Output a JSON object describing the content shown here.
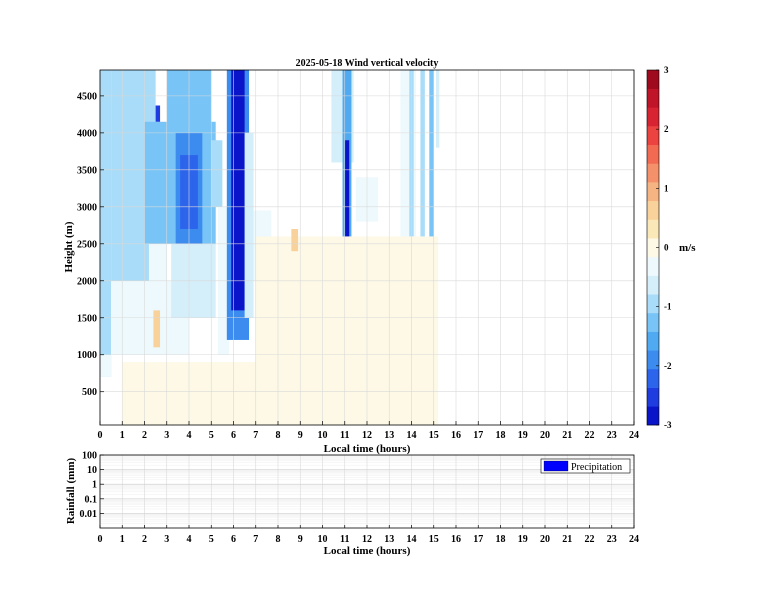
{
  "chart_data": [
    {
      "type": "heatmap",
      "title": "2025-05-18 Wind vertical velocity",
      "xlabel": "Local time (hours)",
      "ylabel": "Height (m)",
      "xlim": [
        0,
        24
      ],
      "ylim": [
        50,
        4850
      ],
      "x_ticks": [
        "0",
        "1",
        "2",
        "3",
        "4",
        "5",
        "6",
        "7",
        "8",
        "9",
        "10",
        "11",
        "12",
        "13",
        "14",
        "15",
        "16",
        "17",
        "18",
        "19",
        "20",
        "21",
        "22",
        "23",
        "24"
      ],
      "y_ticks": [
        "500",
        "1000",
        "1500",
        "2000",
        "2500",
        "3000",
        "3500",
        "4000",
        "4500"
      ],
      "grid": true,
      "colorbar": {
        "label": "m/s",
        "range": [
          -3,
          3
        ],
        "ticks": [
          "3",
          "2",
          "1",
          "0",
          "-1",
          "-2",
          "-3"
        ],
        "colors": [
          "#0a14c8",
          "#1e3ce0",
          "#2d64ec",
          "#3c8cf0",
          "#50aaf2",
          "#78c4f6",
          "#a8dcf8",
          "#d4eefa",
          "#eef9fd",
          "#fdf9e6",
          "#fbe8b8",
          "#f8d29a",
          "#f6b482",
          "#f4916a",
          "#f26a52",
          "#ec4340",
          "#d82432",
          "#c01428",
          "#a00a1e"
        ]
      },
      "cells": [
        {
          "x": [
            0.0,
            0.2
          ],
          "y": [
            1000,
            4850
          ],
          "w": -1.6
        },
        {
          "x": [
            0.0,
            0.5
          ],
          "y": [
            700,
            4850
          ],
          "w": -1.0
        },
        {
          "x": [
            0.0,
            0.5
          ],
          "y": [
            700,
            1000
          ],
          "w": -0.4
        },
        {
          "x": [
            0.5,
            2.5
          ],
          "y": [
            2000,
            4850
          ],
          "w": -1.1
        },
        {
          "x": [
            2.2,
            3.0
          ],
          "y": [
            1200,
            3300
          ],
          "w": -0.3
        },
        {
          "x": [
            0.5,
            4.0
          ],
          "y": [
            1000,
            2000
          ],
          "w": -0.3
        },
        {
          "x": [
            2.0,
            5.2
          ],
          "y": [
            2500,
            4150
          ],
          "w": -1.2
        },
        {
          "x": [
            2.5,
            2.7
          ],
          "y": [
            4150,
            4370
          ],
          "w": -2.4
        },
        {
          "x": [
            3.0,
            5.0
          ],
          "y": [
            4000,
            4850
          ],
          "w": -1.3
        },
        {
          "x": [
            3.4,
            4.6
          ],
          "y": [
            2500,
            4000
          ],
          "w": -1.8
        },
        {
          "x": [
            3.6,
            4.4
          ],
          "y": [
            2700,
            3700
          ],
          "w": -2.2
        },
        {
          "x": [
            3.2,
            5.2
          ],
          "y": [
            1500,
            2500
          ],
          "w": -0.7
        },
        {
          "x": [
            5.0,
            5.5
          ],
          "y": [
            3000,
            3900
          ],
          "w": -1.0
        },
        {
          "x": [
            5.3,
            5.8
          ],
          "y": [
            1000,
            3000
          ],
          "w": -0.4
        },
        {
          "x": [
            5.7,
            6.7
          ],
          "y": [
            1200,
            4850
          ],
          "w": -2.0
        },
        {
          "x": [
            5.9,
            6.5
          ],
          "y": [
            1600,
            4850
          ],
          "w": -2.9
        },
        {
          "x": [
            6.5,
            6.9
          ],
          "y": [
            1500,
            4000
          ],
          "w": -0.5
        },
        {
          "x": [
            6.9,
            7.7
          ],
          "y": [
            2000,
            2950
          ],
          "w": -0.2
        },
        {
          "x": [
            10.4,
            11.4
          ],
          "y": [
            3600,
            4850
          ],
          "w": -0.6
        },
        {
          "x": [
            10.9,
            11.3
          ],
          "y": [
            2300,
            4850
          ],
          "w": -1.5
        },
        {
          "x": [
            11.0,
            11.2
          ],
          "y": [
            2450,
            3900
          ],
          "w": -2.7
        },
        {
          "x": [
            11.5,
            12.5
          ],
          "y": [
            2800,
            3400
          ],
          "w": -0.2
        },
        {
          "x": [
            13.5,
            14.2
          ],
          "y": [
            1500,
            4850
          ],
          "w": -0.2
        },
        {
          "x": [
            13.9,
            14.1
          ],
          "y": [
            2600,
            4850
          ],
          "w": -1.1
        },
        {
          "x": [
            14.4,
            14.6
          ],
          "y": [
            2200,
            4850
          ],
          "w": -0.9
        },
        {
          "x": [
            14.8,
            15.0
          ],
          "y": [
            2400,
            4850
          ],
          "w": -1.3
        },
        {
          "x": [
            15.1,
            15.25
          ],
          "y": [
            3800,
            4850
          ],
          "w": -0.5
        },
        {
          "x": [
            1.0,
            13.5
          ],
          "y": [
            50,
            900
          ],
          "w": 0.15
        },
        {
          "x": [
            7.0,
            15.2
          ],
          "y": [
            50,
            2600
          ],
          "w": 0.1
        },
        {
          "x": [
            2.4,
            2.7
          ],
          "y": [
            1100,
            1600
          ],
          "w": 0.5
        },
        {
          "x": [
            8.6,
            8.9
          ],
          "y": [
            2400,
            2700
          ],
          "w": 0.5
        }
      ]
    },
    {
      "type": "bar",
      "xlabel": "Local time (hours)",
      "ylabel": "Rainfall (mm)",
      "xlim": [
        0,
        24
      ],
      "ylim": [
        0.001,
        100
      ],
      "yscale": "log",
      "x_ticks": [
        "0",
        "1",
        "2",
        "3",
        "4",
        "5",
        "6",
        "7",
        "8",
        "9",
        "10",
        "11",
        "12",
        "13",
        "14",
        "15",
        "16",
        "17",
        "18",
        "19",
        "20",
        "21",
        "22",
        "23",
        "24"
      ],
      "y_ticks": [
        "100",
        "10",
        "1",
        "0.1",
        "0.01"
      ],
      "grid": true,
      "legend": {
        "position": "top-right",
        "label": "Precipitation",
        "color": "#0000ff"
      },
      "series": [
        {
          "name": "Precipitation",
          "values": []
        }
      ]
    }
  ]
}
